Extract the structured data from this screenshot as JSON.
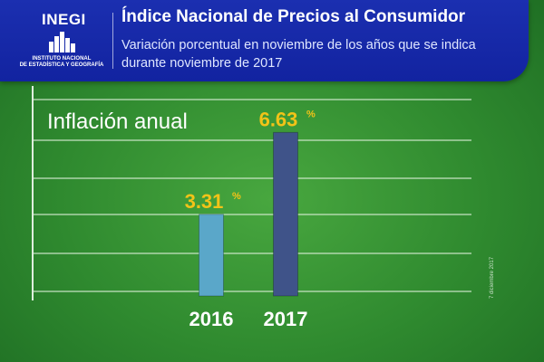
{
  "header": {
    "logo_word": "INEGI",
    "logo_line1": "INSTITUTO NACIONAL",
    "logo_line2": "DE ESTADÍSTICA Y GEOGRAFÍA",
    "title": "Índice Nacional de Precios al Consumidor",
    "subtitle": "Variación porcentual en noviembre de los años que se indica durante noviembre de 2017"
  },
  "side_date": "7 diciembre 2017",
  "colors": {
    "header_blue": "#1223a0",
    "background_green": "#3a9a38",
    "value_label": "#f2c318",
    "bar_2016": "#5aa7c9",
    "bar_2017": "#3f5389"
  },
  "chart_data": {
    "type": "bar",
    "title": "Inflación anual",
    "categories": [
      "2016",
      "2017"
    ],
    "values": [
      3.31,
      6.63
    ],
    "value_labels": [
      "3.31",
      "6.63"
    ],
    "value_suffix": "%",
    "xlabel": "",
    "ylabel": "",
    "ylim": [
      0,
      8
    ],
    "grid": true,
    "legend": "none"
  }
}
